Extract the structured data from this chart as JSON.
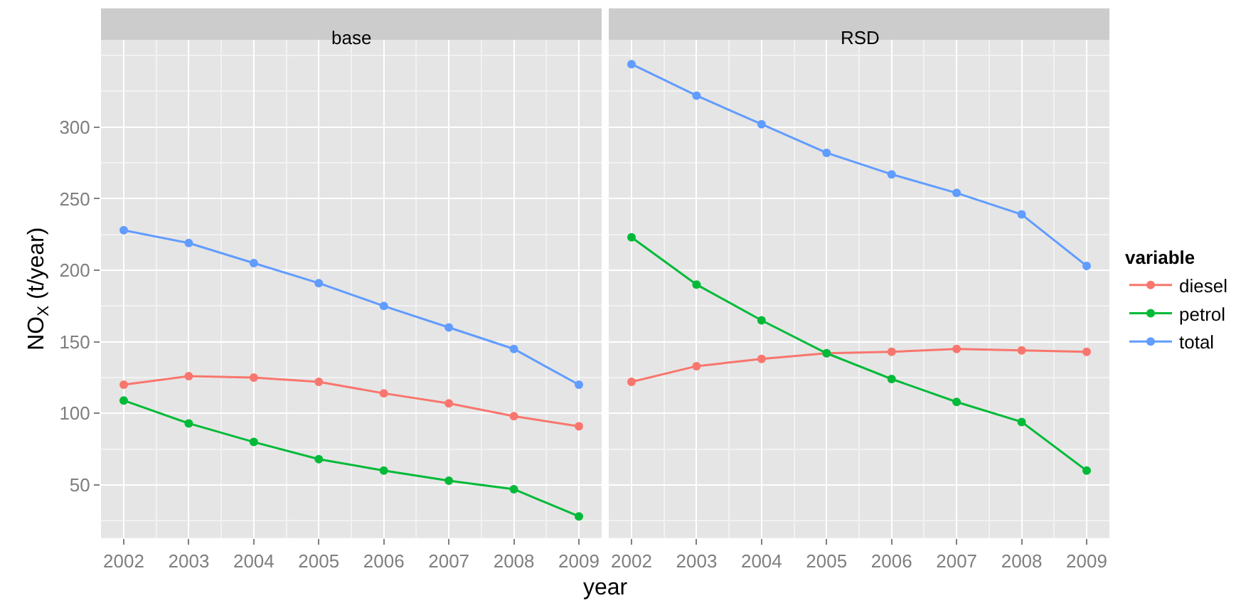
{
  "chart_data": [
    {
      "type": "line",
      "title": "base",
      "xlabel": "year",
      "ylabel": "NO$_{X}$ (t/year)",
      "x": [
        2002,
        2003,
        2004,
        2005,
        2006,
        2007,
        2008,
        2009
      ],
      "xlim": [
        2001.65,
        2009.35
      ],
      "xticks": [
        2002,
        2003,
        2004,
        2005,
        2006,
        2007,
        2008,
        2009
      ],
      "ylim": [
        13,
        361
      ],
      "yticks": [
        50,
        100,
        150,
        200,
        250,
        300
      ],
      "grid": true,
      "marker": "circle",
      "legend": "right",
      "series": [
        {
          "name": "diesel",
          "color": "#f8766d",
          "values": [
            120,
            126,
            125,
            122,
            114,
            107,
            98,
            91
          ]
        },
        {
          "name": "petrol",
          "color": "#00ba38",
          "values": [
            109,
            93,
            80,
            68,
            60,
            53,
            47,
            28
          ]
        },
        {
          "name": "total",
          "color": "#619cff",
          "values": [
            228,
            219,
            205,
            191,
            175,
            160,
            145,
            120
          ]
        }
      ]
    },
    {
      "type": "line",
      "title": "RSD",
      "legend_title": "variable",
      "x": [
        2002,
        2003,
        2004,
        2005,
        2006,
        2007,
        2008,
        2009
      ],
      "xlim": [
        2001.65,
        2009.35
      ],
      "xticks": [
        2002,
        2003,
        2004,
        2005,
        2006,
        2007,
        2008,
        2009
      ],
      "ylim": [
        13,
        361
      ],
      "yticks": [
        50,
        100,
        150,
        200,
        250,
        300
      ],
      "tick_labels": "x",
      "grid": true,
      "marker": "circle",
      "legend": "right",
      "series": [
        {
          "name": "diesel",
          "color": "#f8766d",
          "values": [
            122,
            133,
            138,
            142,
            143,
            145,
            144,
            143
          ]
        },
        {
          "name": "petrol",
          "color": "#00ba38",
          "values": [
            223,
            190,
            165,
            142,
            124,
            108,
            94,
            60
          ]
        },
        {
          "name": "total",
          "color": "#619cff",
          "values": [
            344,
            322,
            302,
            282,
            267,
            254,
            239,
            203
          ]
        }
      ]
    }
  ]
}
